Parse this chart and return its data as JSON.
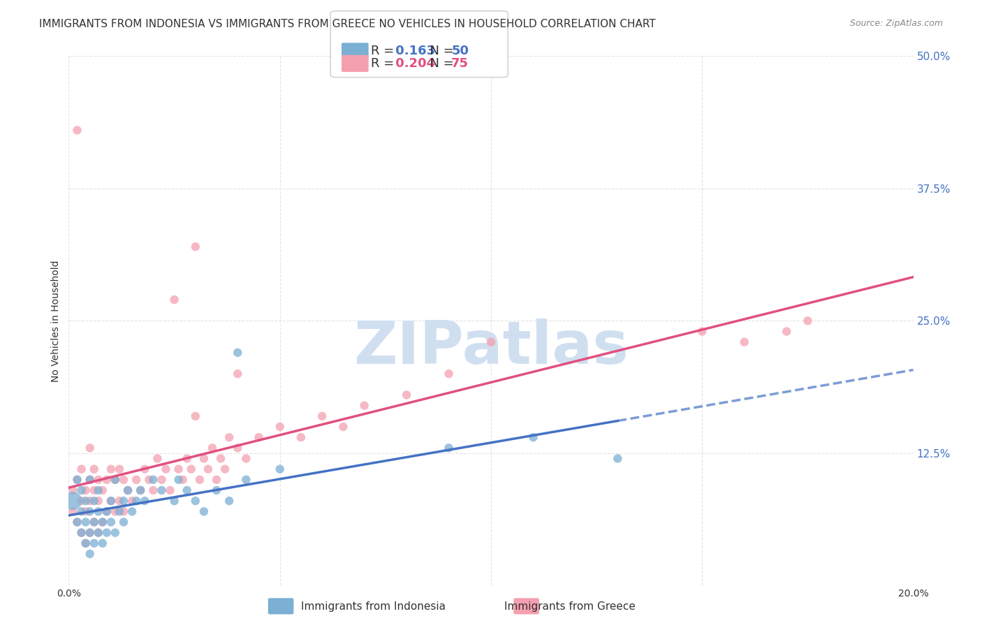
{
  "title": "IMMIGRANTS FROM INDONESIA VS IMMIGRANTS FROM GREECE NO VEHICLES IN HOUSEHOLD CORRELATION CHART",
  "source": "Source: ZipAtlas.com",
  "ylabel": "No Vehicles in Household",
  "xlim": [
    0.0,
    0.2
  ],
  "ylim": [
    0.0,
    0.5
  ],
  "xticks": [
    0.0,
    0.05,
    0.1,
    0.15,
    0.2
  ],
  "yticks": [
    0.0,
    0.125,
    0.25,
    0.375,
    0.5
  ],
  "xticklabels": [
    "0.0%",
    "",
    "",
    "",
    "20.0%"
  ],
  "yticklabels": [
    "",
    "12.5%",
    "25.0%",
    "37.5%",
    "50.0%"
  ],
  "indonesia_color": "#7bafd4",
  "greece_color": "#f4a0b0",
  "indonesia_R": 0.163,
  "indonesia_N": 50,
  "greece_R": 0.204,
  "greece_N": 75,
  "indonesia_line_color": "#4472c4",
  "greece_line_color": "#e05080",
  "background_color": "#ffffff",
  "grid_color": "#dddddd",
  "watermark_text": "ZIPatlas",
  "watermark_color": "#d0dff0",
  "indonesia_scatter_x": [
    0.001,
    0.002,
    0.002,
    0.003,
    0.003,
    0.003,
    0.004,
    0.004,
    0.004,
    0.005,
    0.005,
    0.005,
    0.005,
    0.006,
    0.006,
    0.006,
    0.007,
    0.007,
    0.007,
    0.008,
    0.008,
    0.009,
    0.009,
    0.01,
    0.01,
    0.011,
    0.011,
    0.012,
    0.013,
    0.013,
    0.014,
    0.015,
    0.016,
    0.017,
    0.018,
    0.02,
    0.022,
    0.025,
    0.026,
    0.028,
    0.03,
    0.032,
    0.035,
    0.038,
    0.04,
    0.042,
    0.05,
    0.09,
    0.11,
    0.13
  ],
  "indonesia_scatter_y": [
    0.08,
    0.06,
    0.1,
    0.05,
    0.07,
    0.09,
    0.04,
    0.06,
    0.08,
    0.03,
    0.05,
    0.07,
    0.1,
    0.04,
    0.06,
    0.08,
    0.05,
    0.07,
    0.09,
    0.04,
    0.06,
    0.05,
    0.07,
    0.06,
    0.08,
    0.05,
    0.1,
    0.07,
    0.06,
    0.08,
    0.09,
    0.07,
    0.08,
    0.09,
    0.08,
    0.1,
    0.09,
    0.08,
    0.1,
    0.09,
    0.08,
    0.07,
    0.09,
    0.08,
    0.22,
    0.1,
    0.11,
    0.13,
    0.14,
    0.12
  ],
  "greece_scatter_x": [
    0.001,
    0.001,
    0.002,
    0.002,
    0.003,
    0.003,
    0.003,
    0.004,
    0.004,
    0.004,
    0.005,
    0.005,
    0.005,
    0.005,
    0.006,
    0.006,
    0.006,
    0.007,
    0.007,
    0.007,
    0.008,
    0.008,
    0.009,
    0.009,
    0.01,
    0.01,
    0.011,
    0.011,
    0.012,
    0.012,
    0.013,
    0.013,
    0.014,
    0.015,
    0.016,
    0.017,
    0.018,
    0.019,
    0.02,
    0.021,
    0.022,
    0.023,
    0.024,
    0.025,
    0.026,
    0.027,
    0.028,
    0.029,
    0.03,
    0.031,
    0.032,
    0.033,
    0.034,
    0.035,
    0.036,
    0.037,
    0.038,
    0.04,
    0.042,
    0.045,
    0.05,
    0.055,
    0.06,
    0.065,
    0.07,
    0.08,
    0.09,
    0.1,
    0.15,
    0.16,
    0.17,
    0.175,
    0.002,
    0.03,
    0.04
  ],
  "greece_scatter_y": [
    0.07,
    0.09,
    0.06,
    0.1,
    0.05,
    0.08,
    0.11,
    0.04,
    0.07,
    0.09,
    0.05,
    0.08,
    0.1,
    0.13,
    0.06,
    0.09,
    0.11,
    0.05,
    0.08,
    0.1,
    0.06,
    0.09,
    0.07,
    0.1,
    0.08,
    0.11,
    0.07,
    0.1,
    0.08,
    0.11,
    0.07,
    0.1,
    0.09,
    0.08,
    0.1,
    0.09,
    0.11,
    0.1,
    0.09,
    0.12,
    0.1,
    0.11,
    0.09,
    0.27,
    0.11,
    0.1,
    0.12,
    0.11,
    0.16,
    0.1,
    0.12,
    0.11,
    0.13,
    0.1,
    0.12,
    0.11,
    0.14,
    0.13,
    0.12,
    0.14,
    0.15,
    0.14,
    0.16,
    0.15,
    0.17,
    0.18,
    0.2,
    0.23,
    0.24,
    0.23,
    0.24,
    0.25,
    0.43,
    0.32,
    0.2
  ]
}
